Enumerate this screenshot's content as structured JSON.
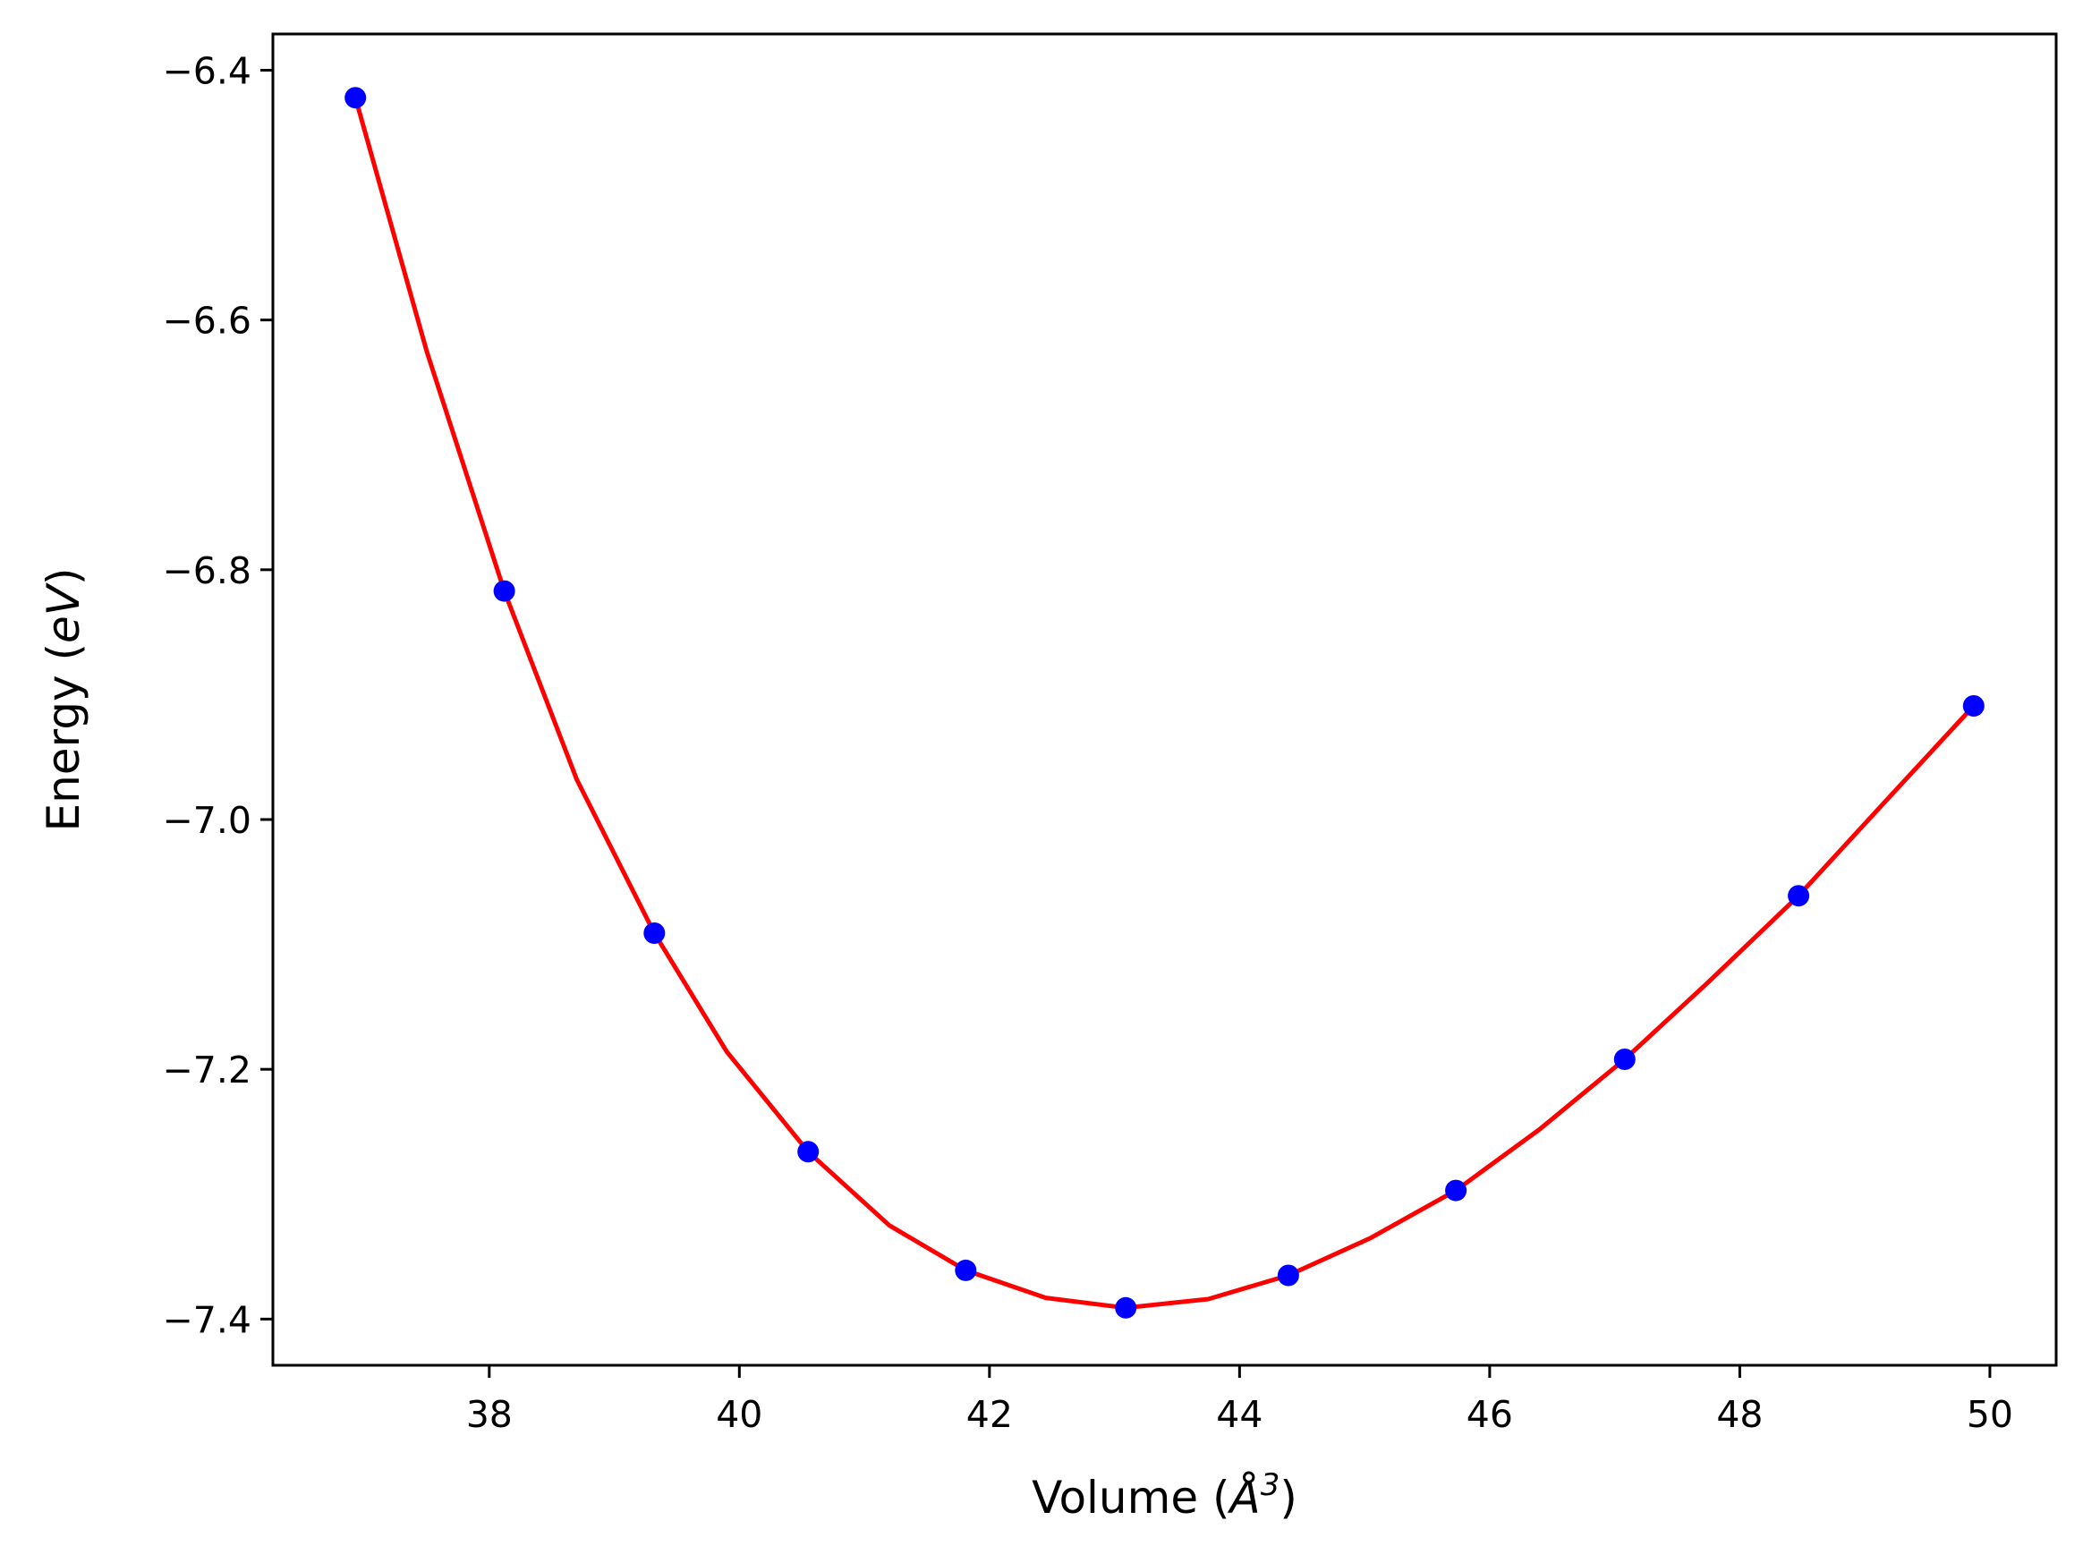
{
  "chart_data": {
    "type": "line",
    "title": "",
    "xlabel": "Volume (Å³)",
    "ylabel": "Energy (eV)",
    "xlabel_parts": {
      "pre": "Volume (",
      "unit": "Å",
      "sup": "3",
      "post": ")"
    },
    "ylabel_parts": {
      "pre": "Energy (",
      "unit": "eV",
      "post": ")"
    },
    "xlim": [
      36.27,
      50.53
    ],
    "ylim": [
      -7.437,
      -6.371
    ],
    "xticks": [
      38,
      40,
      42,
      44,
      46,
      48,
      50
    ],
    "yticks": [
      -6.4,
      -6.6,
      -6.8,
      -7.0,
      -7.2,
      -7.4
    ],
    "xtick_labels": [
      "38",
      "40",
      "42",
      "44",
      "46",
      "48",
      "50"
    ],
    "ytick_labels": [
      "−6.4",
      "−6.6",
      "−6.8",
      "−7.0",
      "−7.2",
      "−7.4"
    ],
    "grid": false,
    "legend": "none",
    "series": [
      {
        "style": "markers",
        "color": "#0000ff",
        "x": [
          36.93,
          38.12,
          39.32,
          40.55,
          41.81,
          43.09,
          44.39,
          45.73,
          47.08,
          48.47,
          49.87
        ],
        "y": [
          -6.422,
          -6.817,
          -7.091,
          -7.266,
          -7.361,
          -7.391,
          -7.365,
          -7.297,
          -7.192,
          -7.061,
          -6.909
        ]
      },
      {
        "style": "line",
        "color": "#ff0000",
        "x": [
          36.93,
          37.5,
          38.12,
          38.7,
          39.32,
          39.9,
          40.55,
          41.2,
          41.81,
          42.45,
          43.09,
          43.75,
          44.39,
          45.05,
          45.73,
          46.4,
          47.08,
          47.75,
          48.47,
          49.15,
          49.87
        ],
        "y": [
          -6.422,
          -6.625,
          -6.817,
          -6.968,
          -7.091,
          -7.186,
          -7.266,
          -7.325,
          -7.361,
          -7.383,
          -7.391,
          -7.384,
          -7.365,
          -7.335,
          -7.297,
          -7.248,
          -7.192,
          -7.13,
          -7.061,
          -6.987,
          -6.909
        ]
      }
    ]
  }
}
